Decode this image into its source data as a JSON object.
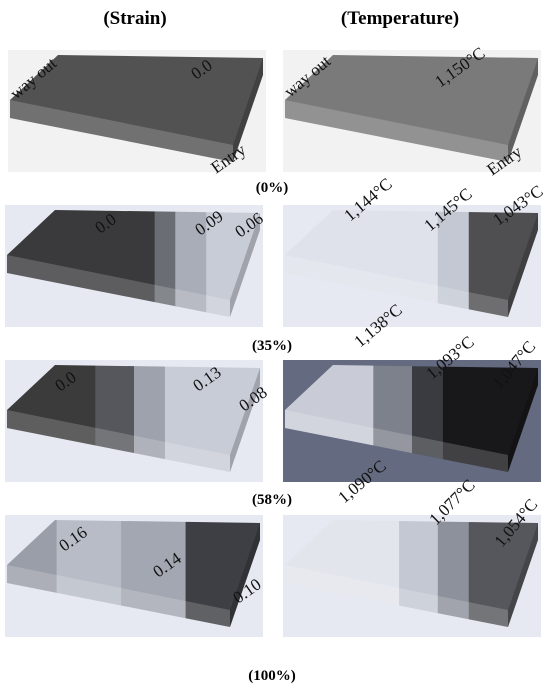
{
  "columns": [
    "(Strain)",
    "(Temperature)"
  ],
  "rows": [
    {
      "label": "(0%)",
      "strain": [
        "way out",
        "0.0",
        "Entry"
      ],
      "temperature": [
        "way out",
        "1,150°C",
        "Entry"
      ]
    },
    {
      "label": "(35%)",
      "strain": [
        "0.0",
        "0.09",
        "0.06"
      ],
      "temperature": [
        "1,144°C",
        "1,145°C",
        "1,043°C"
      ]
    },
    {
      "label": "(58%)",
      "strain": [
        "0.0",
        "0.13",
        "0.08"
      ],
      "temperature": [
        "1,138°C",
        "1,093°C",
        "1,047°C"
      ]
    },
    {
      "label": "(100%)",
      "strain": [
        "0.16",
        "0.14",
        "0.10"
      ],
      "temperature": [
        "1,090°C",
        "1,077°C",
        "1,054°C"
      ]
    }
  ]
}
